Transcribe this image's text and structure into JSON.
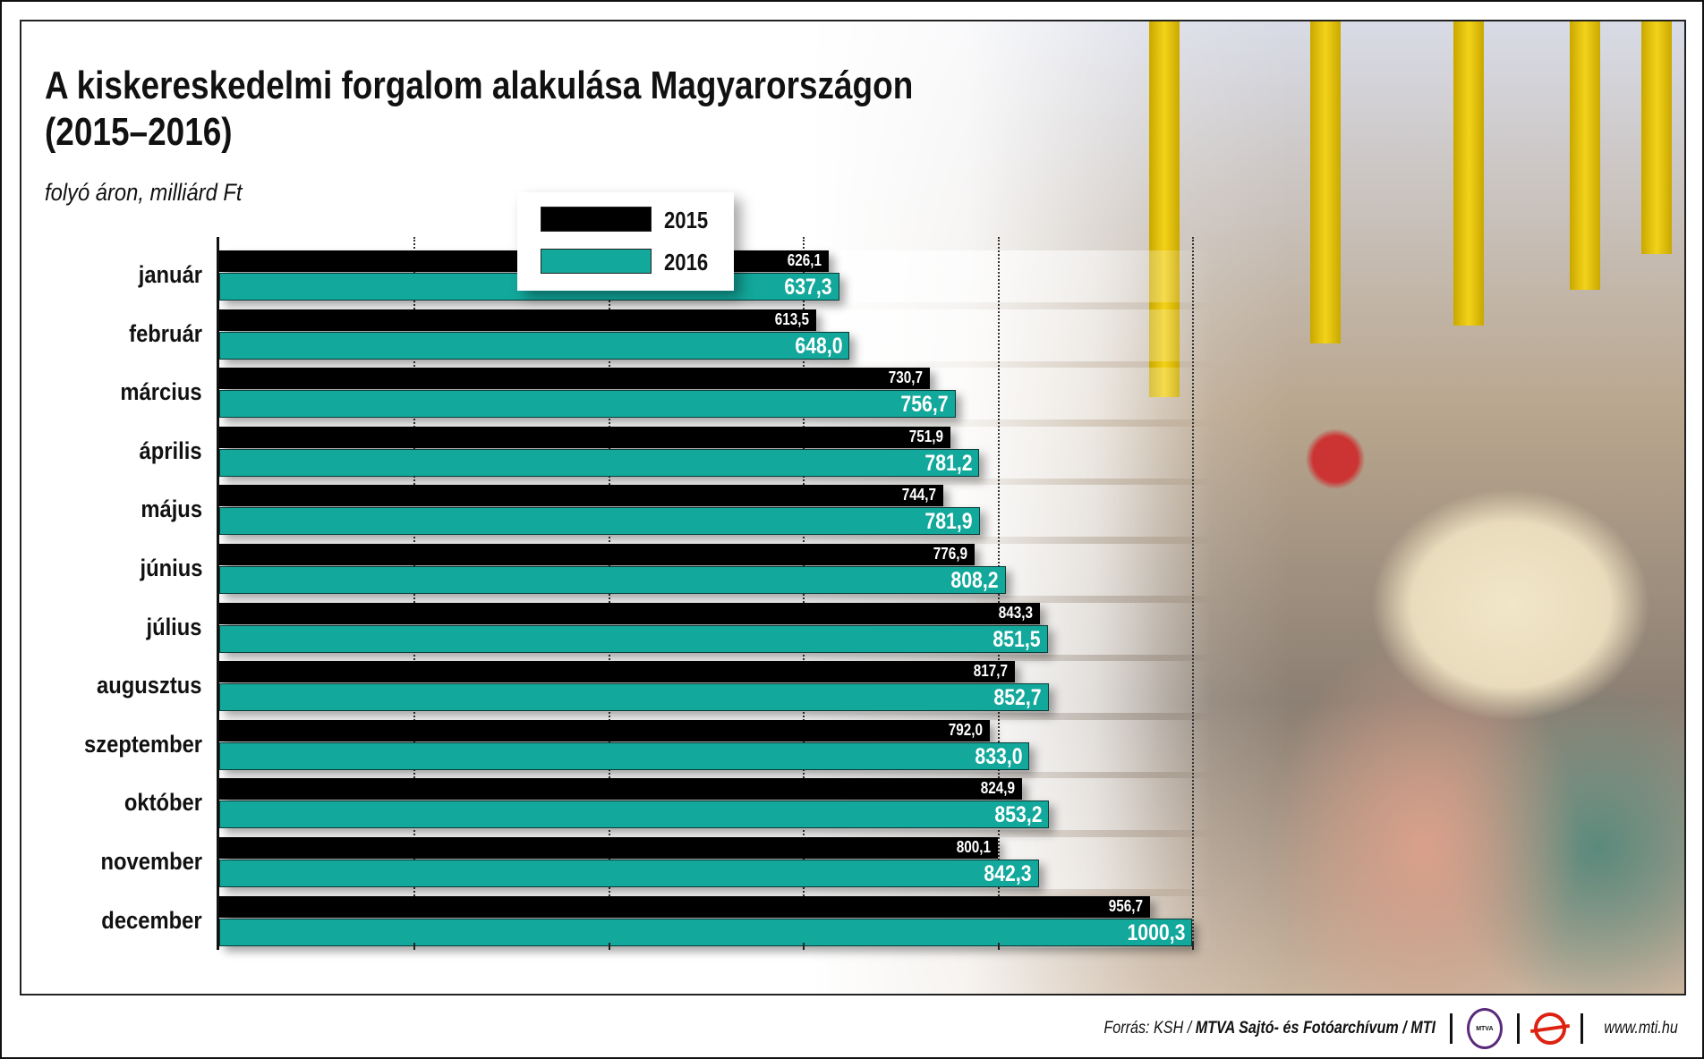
{
  "title_line1": "A kiskereskedelmi forgalom alakulása Magyarországon",
  "title_line2": "(2015–2016)",
  "subtitle": "folyó áron, milliárd Ft",
  "footer": {
    "source_prefix": "Forrás: KSH / ",
    "source_bold": "MTVA Sajtó- és Fotóarchívum / MTI",
    "logo_mtva": "MTVA",
    "url": "www.mti.hu"
  },
  "colors": {
    "2015": "#000000",
    "2016": "#12a89b"
  },
  "chart_data": {
    "type": "bar",
    "orientation": "horizontal",
    "title": "A kiskereskedelmi forgalom alakulása Magyarországon (2015–2016)",
    "subtitle": "folyó áron, milliárd Ft",
    "categories": [
      "január",
      "február",
      "március",
      "április",
      "május",
      "június",
      "július",
      "augusztus",
      "szeptember",
      "október",
      "november",
      "december"
    ],
    "series": [
      {
        "name": "2015",
        "values": [
          626.1,
          613.5,
          730.7,
          751.9,
          744.7,
          776.9,
          843.3,
          817.7,
          792.0,
          824.9,
          800.1,
          956.7
        ],
        "labels": [
          "626,1",
          "613,5",
          "730,7",
          "751,9",
          "744,7",
          "776,9",
          "843,3",
          "817,7",
          "792,0",
          "824,9",
          "800,1",
          "956,7"
        ]
      },
      {
        "name": "2016",
        "values": [
          637.3,
          648.0,
          756.7,
          781.2,
          781.9,
          808.2,
          851.5,
          852.7,
          833.0,
          853.2,
          842.3,
          1000.3
        ],
        "labels": [
          "637,3",
          "648,0",
          "756,7",
          "781,2",
          "781,9",
          "808,2",
          "851,5",
          "852,7",
          "833,0",
          "853,2",
          "842,3",
          "1000,3"
        ]
      }
    ],
    "xlim": [
      0,
      1000
    ],
    "grid_step": 200,
    "grid": true,
    "legend_position": "top-center"
  }
}
